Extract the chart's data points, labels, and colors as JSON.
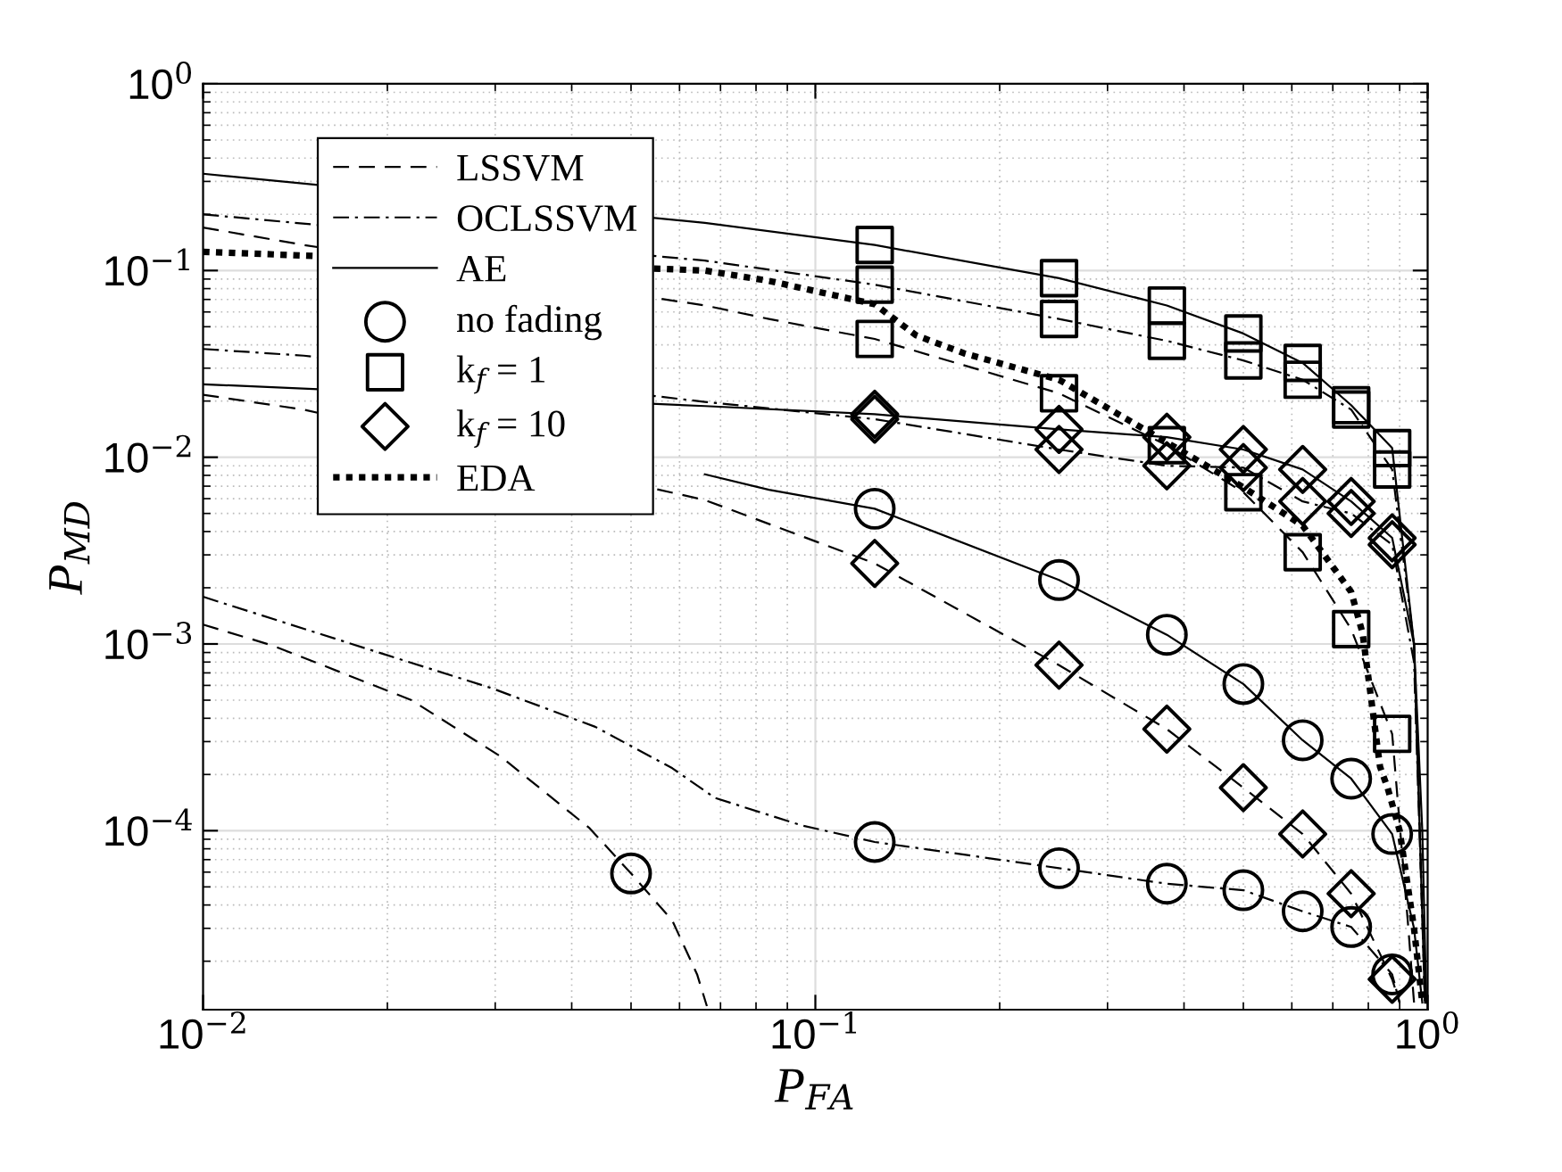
{
  "chart_data": {
    "type": "line",
    "xlabel": "P$_{FA}$",
    "ylabel": "P$_{MD}$",
    "log": "xy",
    "grid": true,
    "legend": "top left",
    "xlim": [
      0.01,
      1
    ],
    "ylim": [
      1.1e-05,
      1
    ],
    "xticks": [
      {
        "value": 0.01,
        "label": "10$^{−2}$"
      },
      {
        "value": 0.1,
        "label": "10$^{−1}$"
      },
      {
        "value": 1,
        "label": "10$^{0}$"
      }
    ],
    "yticks": [
      {
        "value": 0.0001,
        "label": "10$^{−4}$"
      },
      {
        "value": 0.001,
        "label": "10$^{−3}$"
      },
      {
        "value": 0.01,
        "label": "10$^{−2}$"
      },
      {
        "value": 0.1,
        "label": "10$^{−1}$"
      },
      {
        "value": 1,
        "label": "10$^{0}$"
      }
    ],
    "series": [
      {
        "name": "LSSVM",
        "line_style": "dashed",
        "marker": "none",
        "color": "#000000",
        "x": [
          0.01,
          0.013,
          0.0219,
          0.0306,
          0.0428,
          0.05,
          0.0584,
          0.0641,
          0.0665
        ],
        "values": [
          0.00127,
          0.00098,
          0.0005,
          0.00025,
          0.000103,
          5.9e-05,
          3.3e-05,
          1.7e-05,
          1.15e-05
        ]
      },
      {
        "name": "OCLSSVM",
        "line_style": "dashdot",
        "marker": "none",
        "color": "#000000",
        "x": [
          0.01,
          0.02,
          0.0296,
          0.0437,
          0.0584,
          0.0685,
          0.0947,
          0.125,
          0.25,
          0.375,
          0.5,
          0.625,
          0.75,
          0.875,
          0.9
        ],
        "values": [
          0.00179,
          0.00087,
          0.00058,
          0.00036,
          0.000216,
          0.00015,
          0.000107,
          8.7e-05,
          6.3e-05,
          5.2e-05,
          4.8e-05,
          3.7e-05,
          3.05e-05,
          1.7e-05,
          1.2e-05
        ]
      },
      {
        "name": "AE",
        "line_style": "solid",
        "marker": "none",
        "color": "#000000",
        "x": [
          0.066,
          0.084,
          0.125,
          0.25,
          0.375,
          0.5,
          0.625,
          0.75,
          0.875,
          0.95,
          0.98
        ],
        "values": [
          0.0081,
          0.0067,
          0.0053,
          0.0022,
          0.00112,
          0.00061,
          0.000305,
          0.00019,
          9.6e-05,
          3e-05,
          1.2e-05
        ]
      },
      {
        "name": "no fading",
        "type": "scatter",
        "marker": "circle",
        "color": "#000000",
        "x": [
          0.05,
          0.125,
          0.25,
          0.375,
          0.5,
          0.625,
          0.75,
          0.875,
          0.125,
          0.25,
          0.375,
          0.5,
          0.625,
          0.75,
          0.875
        ],
        "values": [
          5.9e-05,
          0.0053,
          0.0022,
          0.00112,
          0.00061,
          0.000305,
          0.00019,
          9.6e-05,
          8.7e-05,
          6.3e-05,
          5.2e-05,
          4.8e-05,
          3.7e-05,
          3.05e-05,
          1.7e-05
        ]
      },
      {
        "name": "k$_{f}$ = 1",
        "type": "scatter",
        "marker": "square",
        "color": "#000000",
        "x": [
          0.125,
          0.25,
          0.375,
          0.5,
          0.625,
          0.75,
          0.875,
          0.125,
          0.25,
          0.375,
          0.5,
          0.625,
          0.75,
          0.875,
          0.125,
          0.25,
          0.375,
          0.5,
          0.625,
          0.75,
          0.875
        ],
        "values": [
          0.137,
          0.091,
          0.065,
          0.046,
          0.032,
          0.019,
          0.0112,
          0.084,
          0.055,
          0.042,
          0.033,
          0.026,
          0.018,
          0.0086,
          0.043,
          0.022,
          0.0116,
          0.0065,
          0.0031,
          0.0012,
          0.00033
        ]
      },
      {
        "name": "k$_{f}$ = 10",
        "type": "scatter",
        "marker": "diamond",
        "color": "#000000",
        "x": [
          0.125,
          0.25,
          0.375,
          0.5,
          0.625,
          0.75,
          0.875,
          0.125,
          0.25,
          0.375,
          0.5,
          0.625,
          0.75,
          0.875,
          0.125,
          0.25,
          0.375,
          0.5,
          0.625,
          0.75,
          0.875
        ],
        "values": [
          0.017,
          0.0141,
          0.0128,
          0.011,
          0.0086,
          0.0058,
          0.0037,
          0.016,
          0.011,
          0.009,
          0.0088,
          0.0058,
          0.005,
          0.0034,
          0.0027,
          0.00077,
          0.00035,
          0.00017,
          9.6e-05,
          4.6e-05,
          1.6e-05
        ]
      },
      {
        "name": "EDA",
        "line_style": "dotted",
        "marker": "none",
        "color": "#000000",
        "x": [
          0.01,
          0.066,
          0.084,
          0.125,
          0.146,
          0.175,
          0.25,
          0.375,
          0.5,
          0.625,
          0.75,
          0.783,
          0.836,
          0.86,
          0.9,
          0.95,
          0.98
        ],
        "values": [
          0.126,
          0.1,
          0.088,
          0.066,
          0.045,
          0.036,
          0.026,
          0.012,
          0.0069,
          0.0043,
          0.0019,
          0.00114,
          0.00022,
          0.00017,
          0.0001,
          3e-05,
          1.2e-05
        ]
      },
      {
        "line_style": "solid",
        "marker": "none",
        "color": "#000000",
        "x": [
          0.01,
          0.066,
          0.125,
          0.25,
          0.375,
          0.5,
          0.625,
          0.75,
          0.875,
          0.95,
          0.98,
          0.995
        ],
        "values": [
          0.33,
          0.18,
          0.137,
          0.091,
          0.065,
          0.046,
          0.032,
          0.019,
          0.0112,
          0.001,
          0.0001,
          1.2e-05
        ]
      },
      {
        "line_style": "dashdot",
        "marker": "none",
        "color": "#000000",
        "x": [
          0.01,
          0.066,
          0.125,
          0.25,
          0.375,
          0.5,
          0.625,
          0.75,
          0.875,
          0.95,
          0.99
        ],
        "values": [
          0.2,
          0.113,
          0.084,
          0.055,
          0.042,
          0.033,
          0.026,
          0.018,
          0.0086,
          0.001,
          1.2e-05
        ]
      },
      {
        "line_style": "dashed",
        "marker": "none",
        "color": "#000000",
        "x": [
          0.01,
          0.0146,
          0.066,
          0.084,
          0.125,
          0.25,
          0.375,
          0.5,
          0.625,
          0.75,
          0.875,
          0.93,
          0.95
        ],
        "values": [
          0.17,
          0.137,
          0.065,
          0.055,
          0.043,
          0.022,
          0.0116,
          0.0065,
          0.0031,
          0.0012,
          0.00033,
          3e-05,
          1.2e-05
        ]
      },
      {
        "line_style": "solid",
        "marker": "none",
        "color": "#000000",
        "x": [
          0.01,
          0.066,
          0.125,
          0.25,
          0.375,
          0.5,
          0.625,
          0.75,
          0.875,
          0.95,
          0.99
        ],
        "values": [
          0.0246,
          0.0188,
          0.017,
          0.0141,
          0.0128,
          0.011,
          0.0086,
          0.0058,
          0.0037,
          0.001,
          1.2e-05
        ]
      },
      {
        "line_style": "dashdot",
        "marker": "none",
        "color": "#000000",
        "x": [
          0.01,
          0.0146,
          0.066,
          0.125,
          0.25,
          0.375,
          0.5,
          0.625,
          0.75,
          0.875,
          0.95,
          0.99
        ],
        "values": [
          0.038,
          0.035,
          0.0198,
          0.016,
          0.011,
          0.009,
          0.0088,
          0.0058,
          0.005,
          0.0034,
          0.0008,
          1.2e-05
        ]
      },
      {
        "line_style": "dashed",
        "marker": "none",
        "color": "#000000",
        "x": [
          0.01,
          0.0146,
          0.066,
          0.125,
          0.25,
          0.375,
          0.5,
          0.625,
          0.75,
          0.875,
          0.9
        ],
        "values": [
          0.0216,
          0.018,
          0.0059,
          0.0027,
          0.00077,
          0.00035,
          0.00017,
          9.6e-05,
          4.6e-05,
          1.6e-05,
          1.2e-05
        ]
      }
    ]
  }
}
